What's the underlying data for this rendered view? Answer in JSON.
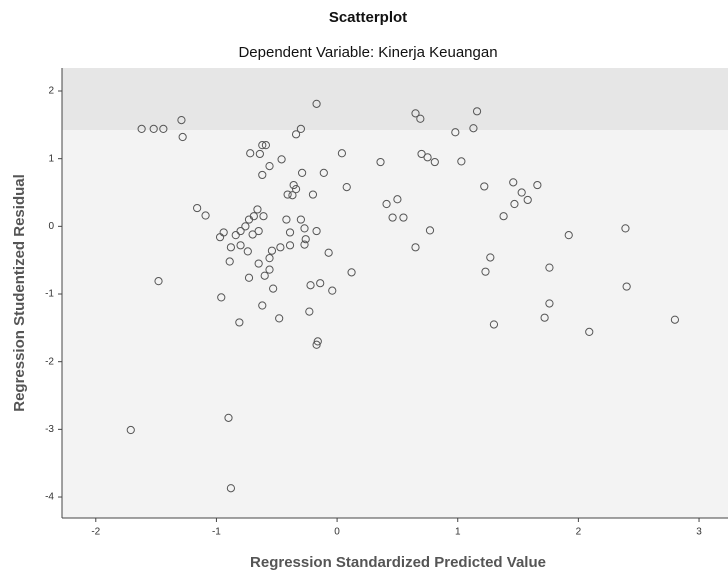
{
  "chart_data": {
    "type": "scatter",
    "title": "Scatterplot",
    "subtitle": "Dependent Variable: Kinerja Keuangan",
    "x_label": "Regression Standardized Predicted Value",
    "y_label": "Regression Studentized Residual",
    "color": "#555555",
    "xlim": [
      -2.28,
      3.24
    ],
    "ylim": [
      -4.31,
      2.34
    ],
    "xticks": [
      -2,
      -1,
      0,
      1,
      2,
      3
    ],
    "yticks": [
      -4,
      -3,
      -2,
      -1,
      0,
      1,
      2
    ],
    "x": [
      -1.62,
      -1.52,
      -1.44,
      -1.29,
      -1.28,
      -0.3,
      -0.34,
      -0.17,
      0.65,
      0.69,
      0.98,
      1.13,
      1.16,
      -1.16,
      -1.09,
      -1.48,
      -1.71,
      -0.9,
      -0.88,
      -0.96,
      -0.81,
      -0.72,
      -0.62,
      -0.59,
      -0.64,
      -0.46,
      -0.62,
      -0.56,
      -0.36,
      -0.29,
      -0.37,
      -0.34,
      -0.2,
      -0.11,
      0.04,
      0.08,
      0.36,
      0.7,
      0.75,
      0.81,
      1.03,
      1.22,
      1.46,
      1.53,
      1.66,
      1.58,
      1.47,
      1.38,
      0.41,
      0.5,
      0.46,
      0.55,
      0.77,
      0.65,
      1.27,
      1.23,
      1.3,
      1.76,
      1.76,
      1.72,
      2.39,
      1.92,
      2.4,
      2.09,
      2.8,
      0.12,
      -0.04,
      -0.14,
      -0.22,
      -0.23,
      -0.16,
      -0.17,
      -0.07,
      -0.17,
      -0.27,
      -0.26,
      -0.27,
      -0.39,
      -0.39,
      -0.41,
      -0.47,
      -0.54,
      -0.56,
      -0.56,
      -0.6,
      -0.65,
      -0.74,
      -0.8,
      -0.7,
      -0.65,
      -0.76,
      -0.69,
      -0.61,
      -0.66,
      -0.73,
      -0.8,
      -0.84,
      -0.88,
      -0.94,
      -0.97,
      -0.89,
      -0.53,
      -0.48,
      -0.62,
      -0.73,
      -0.42,
      -0.3
    ],
    "y": [
      1.44,
      1.44,
      1.44,
      1.57,
      1.32,
      1.44,
      1.36,
      1.81,
      1.67,
      1.59,
      1.39,
      1.45,
      1.7,
      0.27,
      0.16,
      -0.81,
      -3.01,
      -2.83,
      -3.87,
      -1.05,
      -1.42,
      1.08,
      1.2,
      1.2,
      1.07,
      0.99,
      0.76,
      0.89,
      0.61,
      0.79,
      0.46,
      0.55,
      0.47,
      0.79,
      1.08,
      0.58,
      0.95,
      1.07,
      1.02,
      0.95,
      0.96,
      0.59,
      0.65,
      0.5,
      0.61,
      0.39,
      0.33,
      0.15,
      0.33,
      0.4,
      0.13,
      0.13,
      -0.06,
      -0.31,
      -0.46,
      -0.67,
      -1.45,
      -0.61,
      -1.14,
      -1.35,
      -0.03,
      -0.13,
      -0.89,
      -1.56,
      -1.38,
      -0.68,
      -0.95,
      -0.84,
      -0.87,
      -1.26,
      -1.7,
      -1.75,
      -0.39,
      -0.07,
      -0.03,
      -0.19,
      -0.27,
      -0.28,
      -0.09,
      0.47,
      -0.31,
      -0.36,
      -0.47,
      -0.64,
      -0.73,
      -0.55,
      -0.37,
      -0.28,
      -0.12,
      -0.07,
      0,
      0.15,
      0.15,
      0.25,
      0.1,
      -0.07,
      -0.13,
      -0.31,
      -0.09,
      -0.16,
      -0.52,
      -0.92,
      -1.36,
      -1.17,
      -0.76,
      0.1,
      0.1
    ]
  }
}
